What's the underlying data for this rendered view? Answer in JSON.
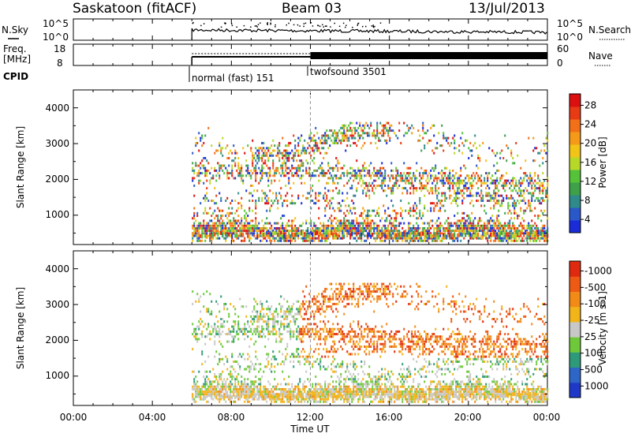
{
  "header": {
    "station": "Saskatoon (fitACF)",
    "beam": "Beam 03",
    "date": "13/Jul/2013"
  },
  "noise_panel": {
    "left_label": "N.Sky",
    "right_label": "N.Search",
    "left_ticks": [
      "10^5",
      "10^0"
    ],
    "right_ticks": [
      "10^5",
      "10^0"
    ]
  },
  "freq_panel": {
    "left_label_lines": [
      "Freq.",
      "[MHz]"
    ],
    "right_label": "Nave",
    "left_ticks": [
      "18",
      "8"
    ],
    "right_ticks": [
      "60",
      "0"
    ]
  },
  "cpid": {
    "label": "CPID",
    "modes": [
      {
        "name": "normal (fast) 151",
        "start_hour": 6.0
      },
      {
        "name": "twofsound 3501",
        "start_hour": 12.0
      }
    ]
  },
  "time_axis": {
    "label": "Time UT",
    "ticks": [
      "00:00",
      "04:00",
      "08:00",
      "12:00",
      "16:00",
      "20:00",
      "00:00"
    ],
    "range_hours": [
      0,
      24
    ]
  },
  "chart_data": [
    {
      "type": "heatmap",
      "title": "Power",
      "ylabel": "Slant Range [km]",
      "xlabel": "",
      "ylim": [
        180,
        4500
      ],
      "yticks": [
        "1000",
        "2000",
        "3000",
        "4000"
      ],
      "colorbar": {
        "label": "Power [dB]",
        "ticks": [
          "4",
          "8",
          "12",
          "16",
          "20",
          "24",
          "28"
        ],
        "colors": [
          "#1a2bd8",
          "#2a58c8",
          "#2f8a8a",
          "#3fa04a",
          "#55c23a",
          "#b8d828",
          "#f2c418",
          "#f59a18",
          "#f27018",
          "#e83a14",
          "#dc1010"
        ]
      },
      "data_start_hour": 6.0
    },
    {
      "type": "heatmap",
      "title": "Velocity",
      "ylabel": "Slant Range [km]",
      "xlabel": "Time UT",
      "ylim": [
        180,
        4500
      ],
      "yticks": [
        "1000",
        "2000",
        "3000",
        "4000"
      ],
      "colorbar": {
        "label": "Velocity [m s-1]",
        "ticks": [
          "1000",
          "500",
          "100",
          "25",
          "-25",
          "-100",
          "-500",
          "-1000"
        ],
        "colors": [
          "#2038c8",
          "#2e66c8",
          "#2f9a7a",
          "#6ec83a",
          "#c8c8c8",
          "#f2b418",
          "#f28a18",
          "#ec5a14",
          "#e02a10"
        ]
      },
      "data_start_hour": 6.0
    }
  ]
}
